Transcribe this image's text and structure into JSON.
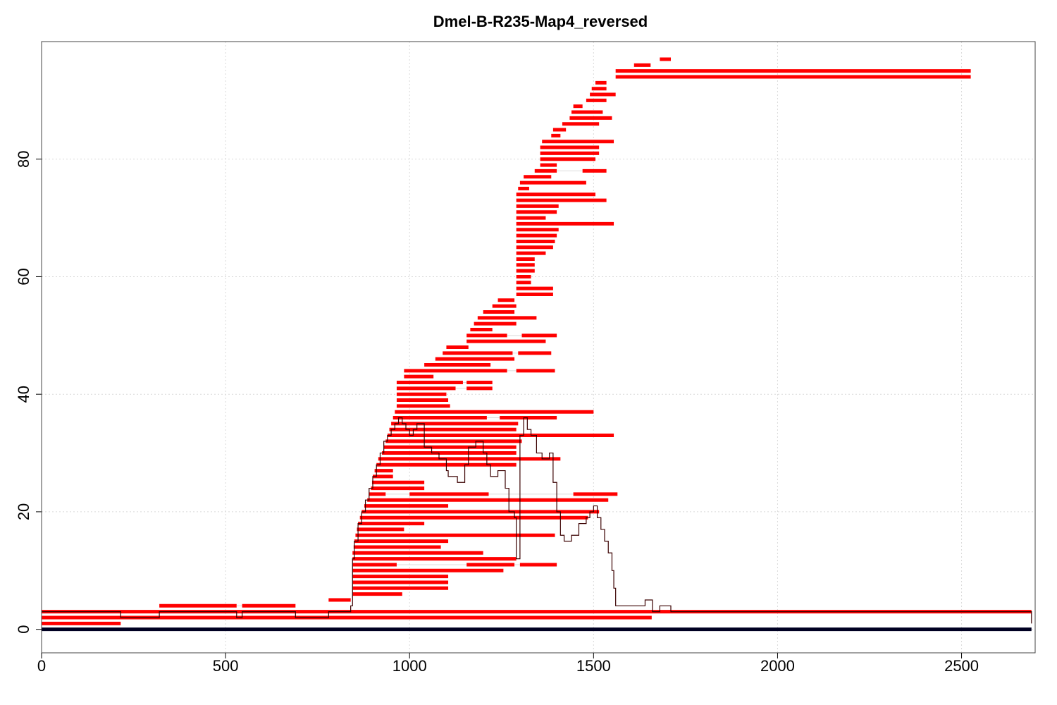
{
  "chart_data": {
    "type": "line",
    "title": "Dmel-B-R235-Map4_reversed",
    "xlabel": "",
    "ylabel": "",
    "xlim": [
      0,
      2700
    ],
    "ylim": [
      -4,
      100
    ],
    "xticks": [
      0,
      500,
      1000,
      1500,
      2000,
      2500
    ],
    "yticks": [
      0,
      20,
      40,
      60,
      80
    ],
    "grid": true,
    "colors": {
      "reads": "#ff0000",
      "coverage": "#3a0000",
      "reference": "#000022",
      "grid": "#d9d9d9"
    },
    "reference": {
      "y": 0,
      "x": [
        0,
        2690
      ]
    },
    "reads": [
      {
        "y": 1,
        "segs": [
          [
            0,
            215
          ]
        ]
      },
      {
        "y": 2,
        "segs": [
          [
            0,
            1658
          ]
        ]
      },
      {
        "y": 3,
        "segs": [
          [
            0,
            2690
          ]
        ]
      },
      {
        "y": 4,
        "segs": [
          [
            320,
            530
          ],
          [
            545,
            690
          ]
        ]
      },
      {
        "y": 5,
        "segs": [
          [
            780,
            840
          ]
        ]
      },
      {
        "y": 6,
        "segs": [
          [
            845,
            980
          ]
        ]
      },
      {
        "y": 7,
        "segs": [
          [
            845,
            1105
          ]
        ]
      },
      {
        "y": 8,
        "segs": [
          [
            845,
            1105
          ]
        ]
      },
      {
        "y": 9,
        "segs": [
          [
            845,
            1105
          ]
        ]
      },
      {
        "y": 10,
        "segs": [
          [
            845,
            1255
          ]
        ]
      },
      {
        "y": 11,
        "segs": [
          [
            845,
            965
          ],
          [
            1155,
            1285
          ],
          [
            1300,
            1400
          ]
        ]
      },
      {
        "y": 12,
        "segs": [
          [
            845,
            1290
          ]
        ]
      },
      {
        "y": 13,
        "segs": [
          [
            845,
            1200
          ]
        ]
      },
      {
        "y": 14,
        "segs": [
          [
            848,
            1085
          ]
        ]
      },
      {
        "y": 15,
        "segs": [
          [
            850,
            1105
          ]
        ]
      },
      {
        "y": 16,
        "segs": [
          [
            853,
            1395
          ]
        ]
      },
      {
        "y": 17,
        "segs": [
          [
            857,
            985
          ]
        ]
      },
      {
        "y": 18,
        "segs": [
          [
            860,
            1040
          ]
        ]
      },
      {
        "y": 19,
        "segs": [
          [
            865,
            1485
          ]
        ]
      },
      {
        "y": 20,
        "segs": [
          [
            870,
            1515
          ]
        ]
      },
      {
        "y": 21,
        "segs": [
          [
            877,
            1105
          ]
        ]
      },
      {
        "y": 22,
        "segs": [
          [
            885,
            1540
          ]
        ]
      },
      {
        "y": 23,
        "segs": [
          [
            890,
            935
          ],
          [
            1000,
            1215
          ],
          [
            1445,
            1565
          ]
        ]
      },
      {
        "y": 24,
        "segs": [
          [
            895,
            1040
          ]
        ]
      },
      {
        "y": 25,
        "segs": [
          [
            898,
            1040
          ]
        ]
      },
      {
        "y": 26,
        "segs": [
          [
            900,
            955
          ]
        ]
      },
      {
        "y": 27,
        "segs": [
          [
            905,
            955
          ]
        ]
      },
      {
        "y": 28,
        "segs": [
          [
            910,
            1290
          ]
        ]
      },
      {
        "y": 29,
        "segs": [
          [
            915,
            1410
          ]
        ]
      },
      {
        "y": 30,
        "segs": [
          [
            925,
            1290
          ]
        ]
      },
      {
        "y": 31,
        "segs": [
          [
            930,
            1290
          ]
        ]
      },
      {
        "y": 32,
        "segs": [
          [
            935,
            1305
          ]
        ]
      },
      {
        "y": 33,
        "segs": [
          [
            940,
            1555
          ]
        ]
      },
      {
        "y": 34,
        "segs": [
          [
            945,
            1290
          ]
        ]
      },
      {
        "y": 35,
        "segs": [
          [
            950,
            1295
          ]
        ]
      },
      {
        "y": 36,
        "segs": [
          [
            955,
            1210
          ],
          [
            1245,
            1400
          ]
        ]
      },
      {
        "y": 37,
        "segs": [
          [
            960,
            1500
          ]
        ]
      },
      {
        "y": 38,
        "segs": [
          [
            965,
            1110
          ]
        ]
      },
      {
        "y": 39,
        "segs": [
          [
            965,
            1105
          ]
        ]
      },
      {
        "y": 40,
        "segs": [
          [
            965,
            1100
          ]
        ]
      },
      {
        "y": 41,
        "segs": [
          [
            965,
            1125
          ],
          [
            1155,
            1225
          ]
        ]
      },
      {
        "y": 42,
        "segs": [
          [
            965,
            1145
          ],
          [
            1155,
            1225
          ]
        ]
      },
      {
        "y": 43,
        "segs": [
          [
            985,
            1065
          ]
        ]
      },
      {
        "y": 44,
        "segs": [
          [
            985,
            1265
          ],
          [
            1290,
            1395
          ]
        ]
      },
      {
        "y": 45,
        "segs": [
          [
            1040,
            1220
          ]
        ]
      },
      {
        "y": 46,
        "segs": [
          [
            1070,
            1285
          ]
        ]
      },
      {
        "y": 47,
        "segs": [
          [
            1090,
            1280
          ],
          [
            1295,
            1385
          ]
        ]
      },
      {
        "y": 48,
        "segs": [
          [
            1100,
            1160
          ]
        ]
      },
      {
        "y": 49,
        "segs": [
          [
            1155,
            1370
          ]
        ]
      },
      {
        "y": 50,
        "segs": [
          [
            1155,
            1265
          ],
          [
            1305,
            1400
          ]
        ]
      },
      {
        "y": 51,
        "segs": [
          [
            1165,
            1225
          ]
        ]
      },
      {
        "y": 52,
        "segs": [
          [
            1175,
            1290
          ]
        ]
      },
      {
        "y": 53,
        "segs": [
          [
            1185,
            1345
          ]
        ]
      },
      {
        "y": 54,
        "segs": [
          [
            1200,
            1285
          ]
        ]
      },
      {
        "y": 55,
        "segs": [
          [
            1225,
            1290
          ]
        ]
      },
      {
        "y": 56,
        "segs": [
          [
            1240,
            1285
          ]
        ]
      },
      {
        "y": 57,
        "segs": [
          [
            1290,
            1390
          ]
        ]
      },
      {
        "y": 58,
        "segs": [
          [
            1290,
            1390
          ]
        ]
      },
      {
        "y": 59,
        "segs": [
          [
            1290,
            1330
          ]
        ]
      },
      {
        "y": 60,
        "segs": [
          [
            1290,
            1330
          ]
        ]
      },
      {
        "y": 61,
        "segs": [
          [
            1290,
            1340
          ]
        ]
      },
      {
        "y": 62,
        "segs": [
          [
            1290,
            1340
          ]
        ]
      },
      {
        "y": 63,
        "segs": [
          [
            1290,
            1340
          ]
        ]
      },
      {
        "y": 64,
        "segs": [
          [
            1290,
            1370
          ]
        ]
      },
      {
        "y": 65,
        "segs": [
          [
            1290,
            1390
          ]
        ]
      },
      {
        "y": 66,
        "segs": [
          [
            1290,
            1395
          ]
        ]
      },
      {
        "y": 67,
        "segs": [
          [
            1290,
            1400
          ]
        ]
      },
      {
        "y": 68,
        "segs": [
          [
            1290,
            1405
          ]
        ]
      },
      {
        "y": 69,
        "segs": [
          [
            1290,
            1555
          ]
        ]
      },
      {
        "y": 70,
        "segs": [
          [
            1290,
            1370
          ]
        ]
      },
      {
        "y": 71,
        "segs": [
          [
            1290,
            1400
          ]
        ]
      },
      {
        "y": 72,
        "segs": [
          [
            1290,
            1405
          ]
        ]
      },
      {
        "y": 73,
        "segs": [
          [
            1290,
            1535
          ]
        ]
      },
      {
        "y": 74,
        "segs": [
          [
            1290,
            1505
          ]
        ]
      },
      {
        "y": 75,
        "segs": [
          [
            1295,
            1325
          ]
        ]
      },
      {
        "y": 76,
        "segs": [
          [
            1300,
            1480
          ]
        ]
      },
      {
        "y": 77,
        "segs": [
          [
            1310,
            1385
          ]
        ]
      },
      {
        "y": 78,
        "segs": [
          [
            1340,
            1400
          ],
          [
            1470,
            1535
          ]
        ]
      },
      {
        "y": 79,
        "segs": [
          [
            1355,
            1400
          ]
        ]
      },
      {
        "y": 80,
        "segs": [
          [
            1355,
            1505
          ]
        ]
      },
      {
        "y": 81,
        "segs": [
          [
            1355,
            1515
          ]
        ]
      },
      {
        "y": 82,
        "segs": [
          [
            1355,
            1515
          ]
        ]
      },
      {
        "y": 83,
        "segs": [
          [
            1360,
            1555
          ]
        ]
      },
      {
        "y": 84,
        "segs": [
          [
            1385,
            1410
          ]
        ]
      },
      {
        "y": 85,
        "segs": [
          [
            1390,
            1425
          ]
        ]
      },
      {
        "y": 86,
        "segs": [
          [
            1415,
            1515
          ]
        ]
      },
      {
        "y": 87,
        "segs": [
          [
            1435,
            1550
          ]
        ]
      },
      {
        "y": 88,
        "segs": [
          [
            1440,
            1525
          ]
        ]
      },
      {
        "y": 89,
        "segs": [
          [
            1445,
            1470
          ]
        ]
      },
      {
        "y": 90,
        "segs": [
          [
            1480,
            1535
          ]
        ]
      },
      {
        "y": 91,
        "segs": [
          [
            1490,
            1560
          ]
        ]
      },
      {
        "y": 92,
        "segs": [
          [
            1495,
            1535
          ]
        ]
      },
      {
        "y": 93,
        "segs": [
          [
            1505,
            1535
          ]
        ]
      },
      {
        "y": 94,
        "segs": [
          [
            1560,
            2525
          ]
        ]
      },
      {
        "y": 95,
        "segs": [
          [
            1560,
            2525
          ]
        ]
      },
      {
        "y": 96,
        "segs": [
          [
            1610,
            1655
          ]
        ]
      },
      {
        "y": 97,
        "segs": [
          [
            1680,
            1710
          ]
        ]
      }
    ],
    "coverage": {
      "x": [
        0,
        215,
        320,
        530,
        545,
        690,
        780,
        840,
        845,
        850,
        860,
        870,
        880,
        890,
        900,
        910,
        920,
        930,
        940,
        950,
        960,
        970,
        980,
        990,
        1000,
        1010,
        1020,
        1040,
        1060,
        1080,
        1100,
        1105,
        1130,
        1150,
        1160,
        1180,
        1200,
        1210,
        1220,
        1240,
        1260,
        1270,
        1285,
        1290,
        1300,
        1310,
        1320,
        1330,
        1345,
        1360,
        1380,
        1390,
        1400,
        1410,
        1420,
        1440,
        1460,
        1480,
        1490,
        1500,
        1510,
        1520,
        1530,
        1540,
        1550,
        1555,
        1560,
        1600,
        1640,
        1660,
        1680,
        1710,
        2525,
        2690
      ],
      "y": [
        3,
        2,
        3,
        2,
        3,
        2,
        3,
        4,
        12,
        15,
        18,
        20,
        22,
        24,
        26,
        28,
        30,
        32,
        33,
        34,
        35,
        36,
        35,
        34,
        33,
        34,
        35,
        31,
        30,
        29,
        27,
        26,
        25,
        28,
        31,
        32,
        30,
        28,
        26,
        27,
        24,
        20,
        19,
        12,
        33,
        36,
        34,
        33,
        30,
        29,
        30,
        25,
        20,
        16,
        15,
        16,
        18,
        19,
        20,
        21,
        19,
        17,
        15,
        13,
        10,
        7,
        4,
        4,
        5,
        3,
        4,
        3,
        3,
        1
      ]
    }
  }
}
